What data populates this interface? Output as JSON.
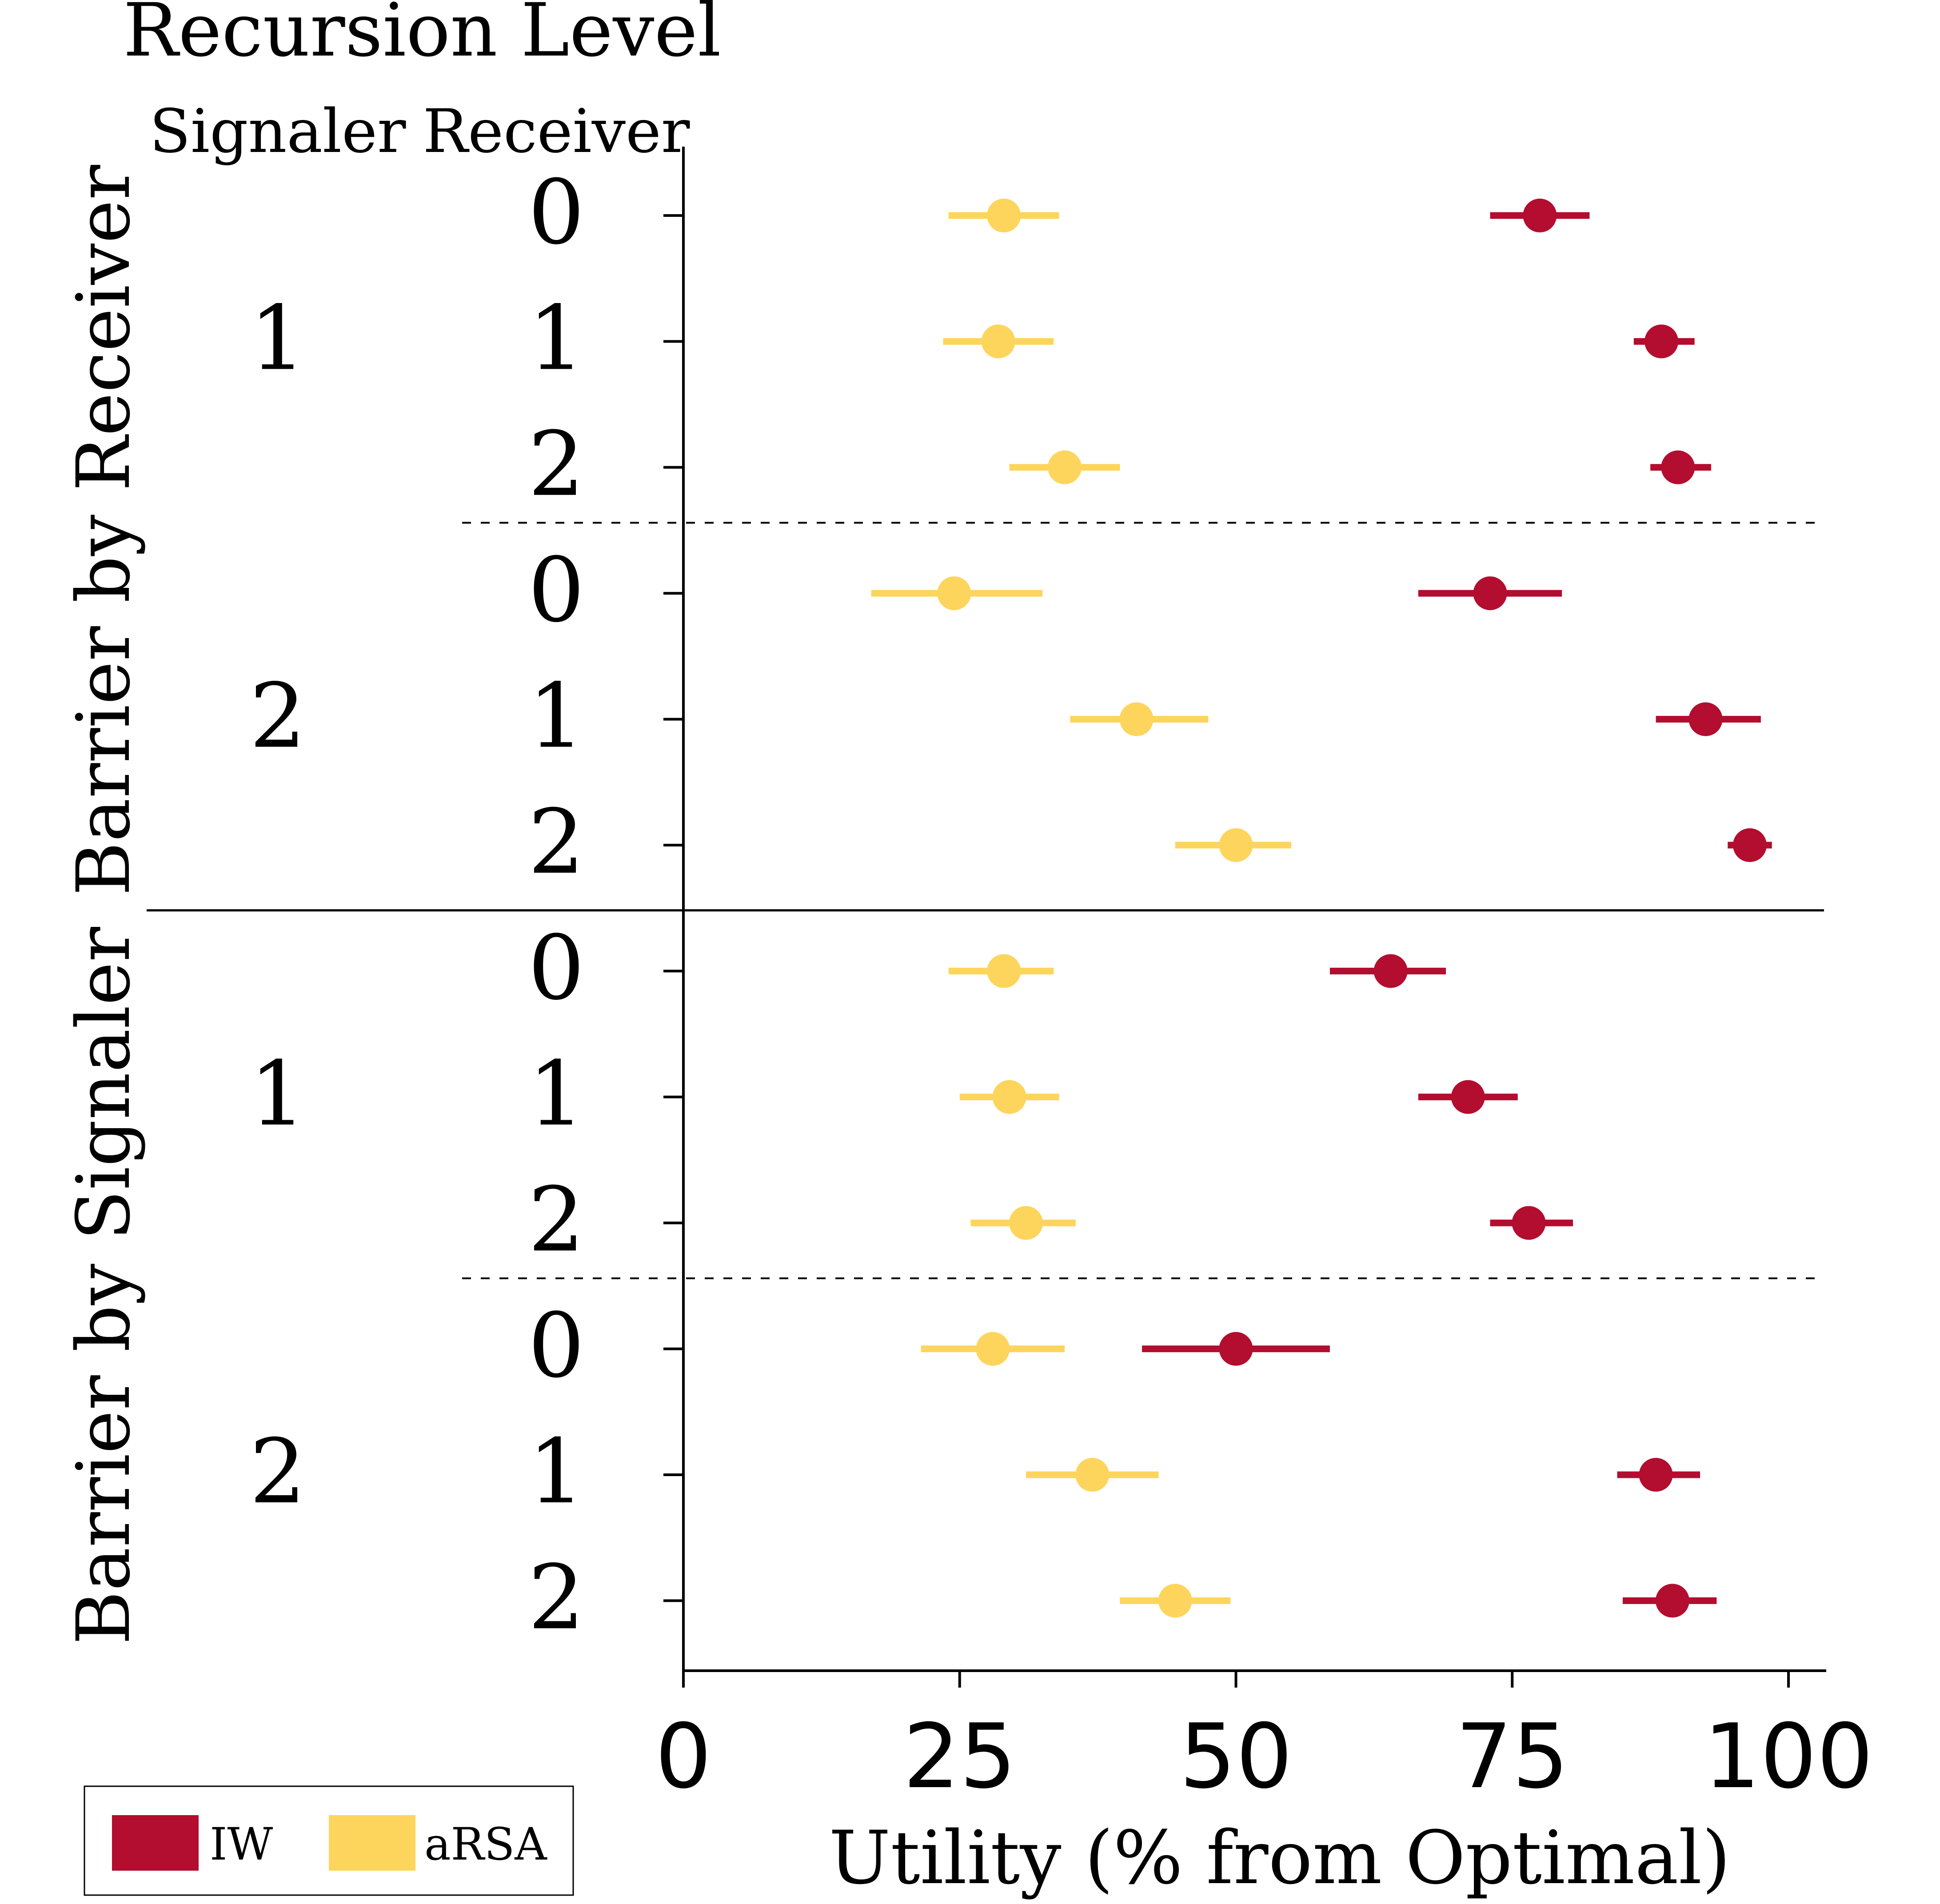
{
  "chart_data": {
    "type": "dot-errorbar",
    "title": "Recursion Level",
    "column_headers": {
      "signaler": "Signaler",
      "receiver": "Receiver"
    },
    "xlabel": "Utility (% from Optimal)",
    "xlim": [
      0,
      103
    ],
    "xticks": [
      "0",
      "25",
      "50",
      "75",
      "100"
    ],
    "xtick_values": [
      0,
      25,
      50,
      75,
      100
    ],
    "groups": [
      {
        "name": "Barrier by Receiver",
        "subgroups": [
          {
            "signaler": "1",
            "rows": [
              {
                "receiver": "0",
                "IW": [
                  77.5,
                  73,
                  82
                ],
                "aRSA": [
                  29,
                  24,
                  34
                ]
              },
              {
                "receiver": "1",
                "IW": [
                  88.5,
                  86,
                  91.5
                ],
                "aRSA": [
                  28.5,
                  23.5,
                  33.5
                ]
              },
              {
                "receiver": "2",
                "IW": [
                  90,
                  87.5,
                  93
                ],
                "aRSA": [
                  34.5,
                  29.5,
                  39.5
                ]
              }
            ]
          },
          {
            "signaler": "2",
            "rows": [
              {
                "receiver": "0",
                "IW": [
                  73,
                  66.5,
                  79.5
                ],
                "aRSA": [
                  24.5,
                  17,
                  32.5
                ]
              },
              {
                "receiver": "1",
                "IW": [
                  92.5,
                  88,
                  97.5
                ],
                "aRSA": [
                  41,
                  35,
                  47.5
                ]
              },
              {
                "receiver": "2",
                "IW": [
                  96.5,
                  94.5,
                  98.5
                ],
                "aRSA": [
                  50,
                  44.5,
                  55
                ]
              }
            ]
          }
        ]
      },
      {
        "name": "Barrier by Signaler",
        "subgroups": [
          {
            "signaler": "1",
            "rows": [
              {
                "receiver": "0",
                "IW": [
                  64,
                  58.5,
                  69
                ],
                "aRSA": [
                  29,
                  24,
                  33.5
                ]
              },
              {
                "receiver": "1",
                "IW": [
                  71,
                  66.5,
                  75.5
                ],
                "aRSA": [
                  29.5,
                  25,
                  34
                ]
              },
              {
                "receiver": "2",
                "IW": [
                  76.5,
                  73,
                  80.5
                ],
                "aRSA": [
                  31,
                  26,
                  35.5
                ]
              }
            ]
          },
          {
            "signaler": "2",
            "rows": [
              {
                "receiver": "0",
                "IW": [
                  50,
                  41.5,
                  58.5
                ],
                "aRSA": [
                  28,
                  21.5,
                  34.5
                ]
              },
              {
                "receiver": "1",
                "IW": [
                  88,
                  84.5,
                  92
                ],
                "aRSA": [
                  37,
                  31,
                  43
                ]
              },
              {
                "receiver": "2",
                "IW": [
                  89.5,
                  85,
                  93.5
                ],
                "aRSA": [
                  44.5,
                  39.5,
                  49.5
                ]
              }
            ]
          }
        ]
      }
    ],
    "series": [
      {
        "name": "IW",
        "color": "#b30d2f"
      },
      {
        "name": "aRSA",
        "color": "#fdd55c"
      }
    ],
    "legend_position": "bottom-left"
  }
}
